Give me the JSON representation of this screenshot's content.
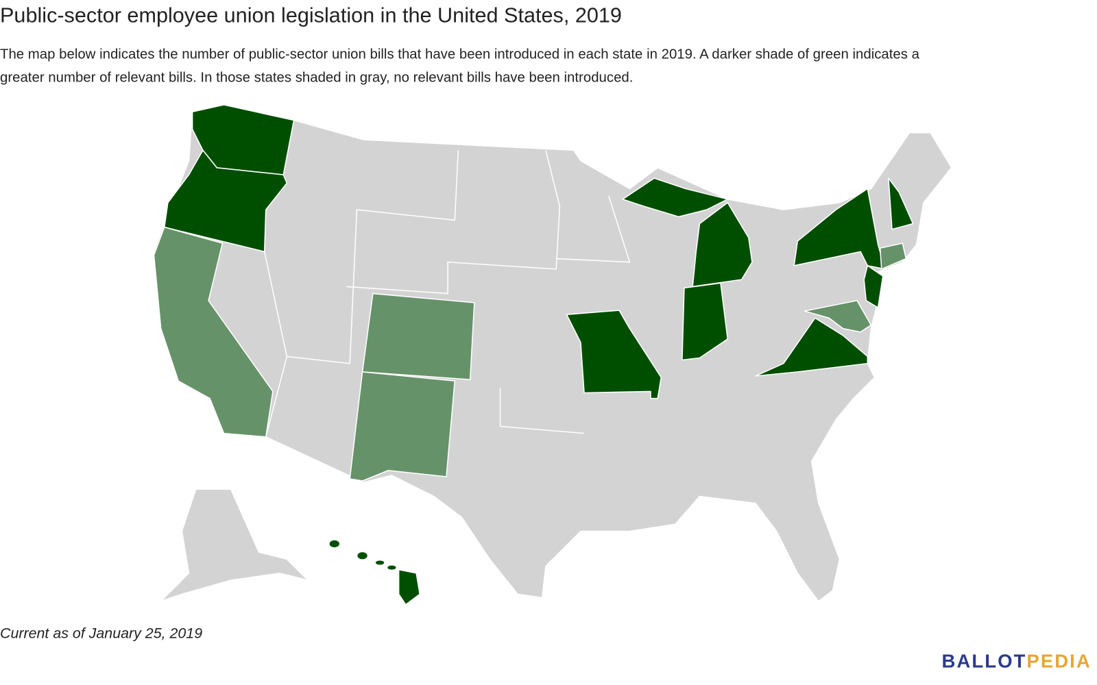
{
  "header": {
    "title": "Public-sector employee union legislation in the United States, 2019",
    "description_line1": "The map below indicates the number of public-sector union bills that have been introduced in each state in 2019. A darker shade of green indicates a",
    "description_line2": "greater number of relevant bills. In those states shaded in gray, no relevant bills have been introduced."
  },
  "footer": {
    "note": "Current as of January 25, 2019",
    "logo_part1": "BALLOT",
    "logo_part2": "PEDIA"
  }
}
